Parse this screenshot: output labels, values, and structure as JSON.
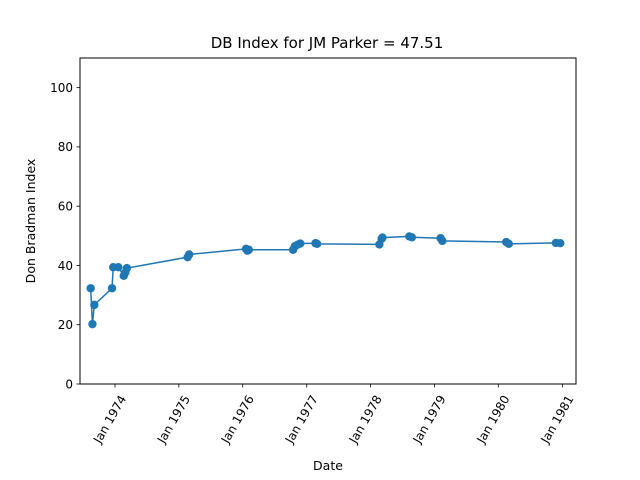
{
  "chart_data": {
    "type": "line",
    "title": "DB Index for JM Parker = 47.51",
    "xlabel": "Date",
    "ylabel": "Don Bradman Index",
    "ylim": [
      0,
      110
    ],
    "xlim": [
      "1973-06-15",
      "1981-03-20"
    ],
    "yticks": [
      0,
      20,
      40,
      60,
      80,
      100
    ],
    "xticks": [
      {
        "date": "1974-01-01",
        "label": "Jan 1974"
      },
      {
        "date": "1975-01-01",
        "label": "Jan 1975"
      },
      {
        "date": "1976-01-01",
        "label": "Jan 1976"
      },
      {
        "date": "1977-01-01",
        "label": "Jan 1977"
      },
      {
        "date": "1978-01-01",
        "label": "Jan 1978"
      },
      {
        "date": "1979-01-01",
        "label": "Jan 1979"
      },
      {
        "date": "1980-01-01",
        "label": "Jan 1980"
      },
      {
        "date": "1981-01-01",
        "label": "Jan 1981"
      }
    ],
    "grid": false,
    "legend": "none",
    "series_color": "#1f77b4",
    "series": [
      {
        "points": [
          {
            "x": "1973-08-15",
            "y": 32.3
          },
          {
            "x": "1973-08-25",
            "y": 20.2
          },
          {
            "x": "1973-09-05",
            "y": 26.7
          },
          {
            "x": "1973-12-15",
            "y": 32.3
          },
          {
            "x": "1973-12-22",
            "y": 39.4
          },
          {
            "x": "1974-01-20",
            "y": 39.4
          },
          {
            "x": "1974-02-20",
            "y": 36.5
          },
          {
            "x": "1974-03-01",
            "y": 37.6
          },
          {
            "x": "1974-03-10",
            "y": 39.1
          },
          {
            "x": "1975-02-20",
            "y": 42.8
          },
          {
            "x": "1975-03-01",
            "y": 43.7
          },
          {
            "x": "1976-01-20",
            "y": 45.6
          },
          {
            "x": "1976-01-28",
            "y": 45.0
          },
          {
            "x": "1976-02-05",
            "y": 45.3
          },
          {
            "x": "1976-10-15",
            "y": 45.3
          },
          {
            "x": "1976-10-25",
            "y": 46.5
          },
          {
            "x": "1976-11-10",
            "y": 47.0
          },
          {
            "x": "1976-11-25",
            "y": 47.4
          },
          {
            "x": "1977-02-20",
            "y": 47.5
          },
          {
            "x": "1977-03-01",
            "y": 47.3
          },
          {
            "x": "1978-02-20",
            "y": 47.1
          },
          {
            "x": "1978-03-05",
            "y": 49.0
          },
          {
            "x": "1978-03-10",
            "y": 49.4
          },
          {
            "x": "1978-08-10",
            "y": 49.8
          },
          {
            "x": "1978-08-25",
            "y": 49.5
          },
          {
            "x": "1979-02-05",
            "y": 49.2
          },
          {
            "x": "1979-02-15",
            "y": 48.3
          },
          {
            "x": "1980-02-15",
            "y": 47.9
          },
          {
            "x": "1980-03-01",
            "y": 47.3
          },
          {
            "x": "1980-11-25",
            "y": 47.6
          },
          {
            "x": "1980-12-20",
            "y": 47.51
          }
        ]
      }
    ]
  }
}
